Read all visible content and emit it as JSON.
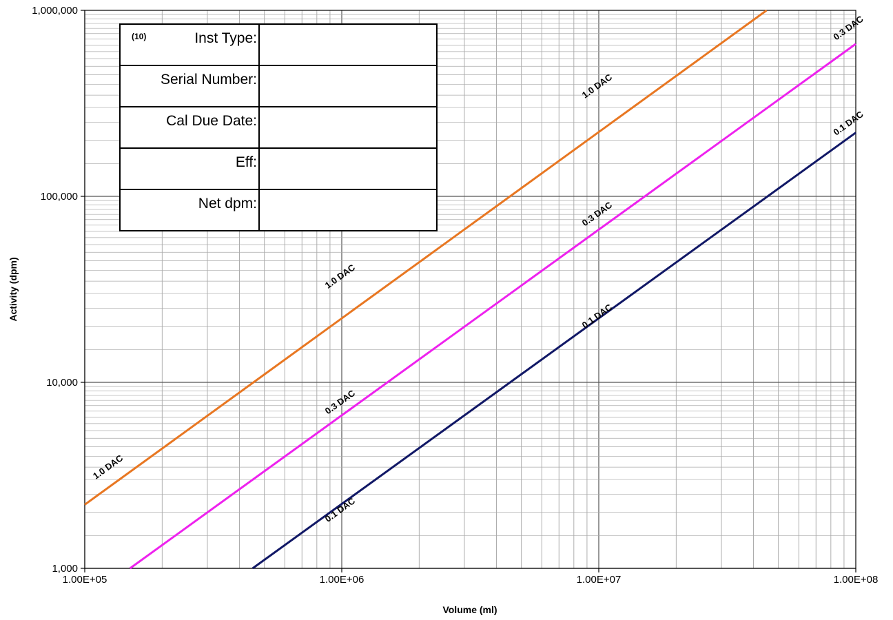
{
  "chart_data": {
    "type": "line",
    "x_scale": "log",
    "y_scale": "log",
    "xlim": [
      100000,
      100000000
    ],
    "ylim": [
      1000,
      1000000
    ],
    "xlabel": "Volume (ml)",
    "ylabel": "Activity (dpm)",
    "x_tick_labels": [
      "1.00E+05",
      "1.00E+06",
      "1.00E+07",
      "1.00E+08"
    ],
    "y_tick_labels": [
      "1,000",
      "10,000",
      "100,000",
      "1,000,000"
    ],
    "grid": true,
    "series": [
      {
        "name": "1.0 DAC",
        "color": "#e87722",
        "x": [
          100000,
          45000000
        ],
        "y": [
          2200,
          1000000
        ]
      },
      {
        "name": "0.3 DAC",
        "color": "#ee22ee",
        "x": [
          150000,
          100000000
        ],
        "y": [
          1000,
          660000
        ]
      },
      {
        "name": "0.1 DAC",
        "color": "#111866",
        "x": [
          450000,
          100000000
        ],
        "y": [
          1000,
          220000
        ]
      }
    ],
    "annotations": [
      {
        "text": "1.0 DAC",
        "x": 125000,
        "y": 3400
      },
      {
        "text": "1.0 DAC",
        "x": 1000000,
        "y": 36000
      },
      {
        "text": "1.0 DAC",
        "x": 10000000,
        "y": 380000
      },
      {
        "text": "0.3 DAC",
        "x": 1000000,
        "y": 7600
      },
      {
        "text": "0.3 DAC",
        "x": 10000000,
        "y": 78000
      },
      {
        "text": "0.3 DAC",
        "x": 95000000,
        "y": 780000
      },
      {
        "text": "0.1 DAC",
        "x": 1000000,
        "y": 2000
      },
      {
        "text": "0.1 DAC",
        "x": 10000000,
        "y": 22000
      },
      {
        "text": "0.1 DAC",
        "x": 95000000,
        "y": 240000
      }
    ]
  },
  "form": {
    "number": "(10)",
    "rows": [
      {
        "label": "Inst Type:",
        "value": ""
      },
      {
        "label": "Serial Number:",
        "value": ""
      },
      {
        "label": "Cal Due Date:",
        "value": ""
      },
      {
        "label": "Eff:",
        "value": ""
      },
      {
        "label": "Net dpm:",
        "value": ""
      }
    ]
  }
}
